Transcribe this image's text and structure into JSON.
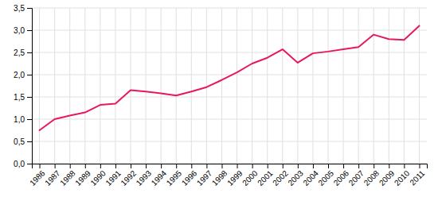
{
  "chart_data": {
    "type": "line",
    "x": [
      1986,
      1987,
      1988,
      1989,
      1990,
      1991,
      1992,
      1993,
      1994,
      1995,
      1996,
      1997,
      1998,
      1999,
      2000,
      2001,
      2002,
      2003,
      2004,
      2005,
      2006,
      2007,
      2008,
      2009,
      2010,
      2011
    ],
    "values": [
      0.75,
      1.0,
      1.08,
      1.15,
      1.32,
      1.35,
      1.65,
      1.62,
      1.58,
      1.53,
      1.62,
      1.72,
      1.88,
      2.05,
      2.25,
      2.38,
      2.57,
      2.27,
      2.48,
      2.52,
      2.57,
      2.62,
      2.9,
      2.8,
      2.78,
      3.1
    ],
    "color": "#e8185a",
    "xlim": [
      1985.5,
      2011.5
    ],
    "xticks": [
      1986,
      1987,
      1988,
      1989,
      1990,
      1991,
      1992,
      1993,
      1994,
      1995,
      1996,
      1997,
      1998,
      1999,
      2000,
      2001,
      2002,
      2003,
      2004,
      2005,
      2006,
      2007,
      2008,
      2009,
      2010,
      2011
    ],
    "ylim": [
      0.0,
      3.5
    ],
    "yticks": [
      {
        "value": 0.0,
        "label": "0,0"
      },
      {
        "value": 0.5,
        "label": "0,5"
      },
      {
        "value": 1.0,
        "label": "1,0"
      },
      {
        "value": 1.5,
        "label": "1,5"
      },
      {
        "value": 2.0,
        "label": "2,0"
      },
      {
        "value": 2.5,
        "label": "2,5"
      },
      {
        "value": 3.0,
        "label": "3,0"
      },
      {
        "value": 3.5,
        "label": "3,5"
      }
    ],
    "grid": true
  }
}
